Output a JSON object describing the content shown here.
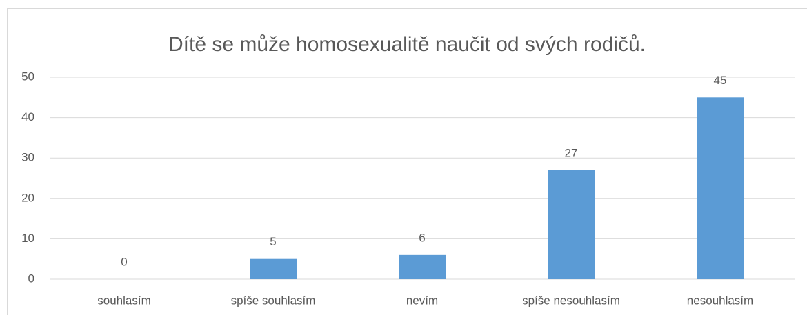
{
  "chart_data": {
    "type": "bar",
    "title": "Dítě se může homosexualitě naučit od svých rodičů.",
    "categories": [
      "souhlasím",
      "spíše souhlasím",
      "nevím",
      "spíše nesouhlasím",
      "nesouhlasím"
    ],
    "values": [
      0,
      5,
      6,
      27,
      45
    ],
    "color": "#5b9bd5",
    "ylim": [
      0,
      50
    ],
    "yticks": [
      0,
      10,
      20,
      30,
      40,
      50
    ],
    "grid": true
  }
}
